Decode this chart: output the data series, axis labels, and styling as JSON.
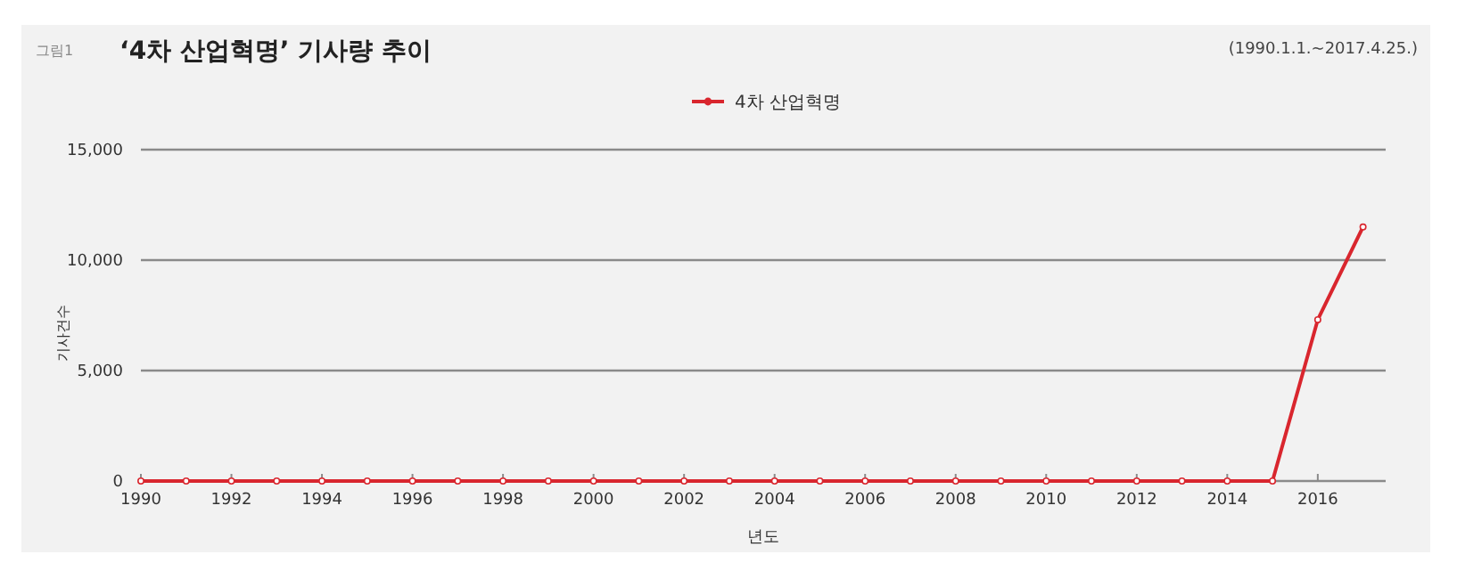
{
  "chart_data": {
    "type": "line",
    "title": "‘4차 산업혁명’ 기사량 추이",
    "subtitle": "(1990.1.1.~2017.4.25.)",
    "annotations": [
      "그림1"
    ],
    "xlabel": "년도",
    "ylabel": "기사건수",
    "x": [
      1990,
      1991,
      1992,
      1993,
      1994,
      1995,
      1996,
      1997,
      1998,
      1999,
      2000,
      2001,
      2002,
      2003,
      2004,
      2005,
      2006,
      2007,
      2008,
      2009,
      2010,
      2011,
      2012,
      2013,
      2014,
      2015,
      2016,
      2017
    ],
    "series": [
      {
        "name": "4차 산업혁명",
        "color": "#d9262e",
        "values": [
          0,
          0,
          0,
          0,
          0,
          0,
          0,
          0,
          0,
          0,
          0,
          0,
          0,
          0,
          0,
          0,
          0,
          0,
          0,
          0,
          0,
          0,
          0,
          0,
          0,
          0,
          7300,
          11500
        ]
      }
    ],
    "xlim": [
      1990,
      2017.5
    ],
    "xticks": [
      1990,
      1992,
      1994,
      1996,
      1998,
      2000,
      2002,
      2004,
      2006,
      2008,
      2010,
      2012,
      2014,
      2016
    ],
    "ylim": [
      0,
      15000
    ],
    "yticks": [
      {
        "value": 0,
        "label": "0"
      },
      {
        "value": 5000,
        "label": "5,000"
      },
      {
        "value": 10000,
        "label": "10,000"
      },
      {
        "value": 15000,
        "label": "15,000"
      }
    ],
    "grid": "y",
    "legend": "top",
    "marker": "circle",
    "line_style": "solid"
  }
}
